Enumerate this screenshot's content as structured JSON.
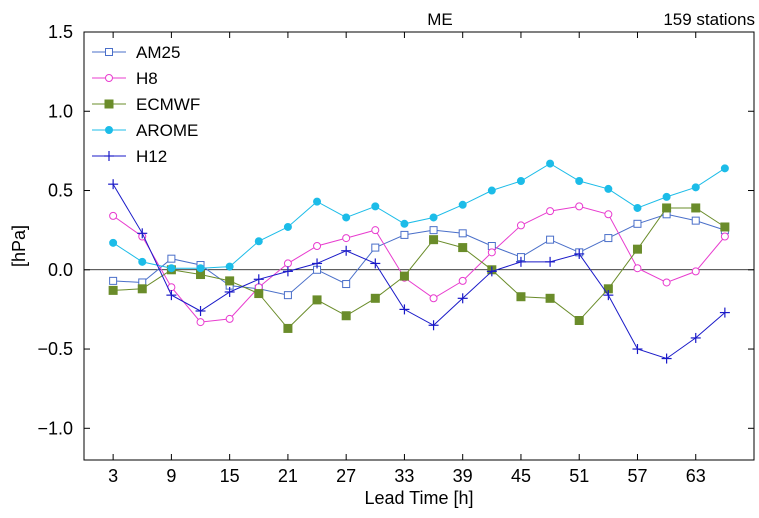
{
  "chart_data": {
    "type": "line",
    "title": "ME",
    "subtitle": "159 stations",
    "xlabel": "Lead Time [h]",
    "ylabel": "[hPa]",
    "xlim": [
      0,
      69
    ],
    "ylim": [
      -1.2,
      1.5
    ],
    "x_ticks": [
      3,
      9,
      15,
      21,
      27,
      33,
      39,
      45,
      51,
      57,
      63
    ],
    "y_ticks": [
      -1.0,
      -0.5,
      0.0,
      0.5,
      1.0,
      1.5
    ],
    "y_tick_labels": [
      "−1.0",
      "−0.5",
      "0.0",
      "0.5",
      "1.0",
      "1.5"
    ],
    "grid": false,
    "zero_line": true,
    "legend_position": "top-left",
    "x": [
      3,
      6,
      9,
      12,
      15,
      18,
      21,
      24,
      27,
      30,
      33,
      36,
      39,
      42,
      45,
      48,
      51,
      54,
      57,
      60,
      63,
      66
    ],
    "series": [
      {
        "name": "AM25",
        "color": "#4a6fc9",
        "marker": "open-square",
        "values": [
          -0.07,
          -0.08,
          0.07,
          0.03,
          -0.1,
          -0.12,
          -0.16,
          0.0,
          -0.09,
          0.14,
          0.22,
          0.25,
          0.23,
          0.15,
          0.08,
          0.19,
          0.11,
          0.2,
          0.29,
          0.35,
          0.31,
          0.25
        ]
      },
      {
        "name": "H8",
        "color": "#e83ccf",
        "marker": "open-circle",
        "values": [
          0.34,
          0.21,
          -0.11,
          -0.33,
          -0.31,
          -0.11,
          0.04,
          0.15,
          0.2,
          0.25,
          -0.05,
          -0.18,
          -0.07,
          0.11,
          0.28,
          0.37,
          0.4,
          0.35,
          0.01,
          -0.08,
          -0.01,
          0.21
        ]
      },
      {
        "name": "ECMWF",
        "color": "#6a8c2a",
        "marker": "filled-square",
        "values": [
          -0.13,
          -0.12,
          0.0,
          -0.03,
          -0.07,
          -0.15,
          -0.37,
          -0.19,
          -0.29,
          -0.18,
          -0.04,
          0.19,
          0.14,
          0.0,
          -0.17,
          -0.18,
          -0.32,
          -0.12,
          0.13,
          0.39,
          0.39,
          0.27
        ]
      },
      {
        "name": "AROME",
        "color": "#1cbce8",
        "marker": "filled-circle",
        "values": [
          0.17,
          0.05,
          0.01,
          0.01,
          0.02,
          0.18,
          0.27,
          0.43,
          0.33,
          0.4,
          0.29,
          0.33,
          0.41,
          0.5,
          0.56,
          0.67,
          0.56,
          0.51,
          0.39,
          0.46,
          0.52,
          0.64
        ]
      },
      {
        "name": "H12",
        "color": "#1a1ac8",
        "marker": "plus",
        "values": [
          0.54,
          0.23,
          -0.16,
          -0.26,
          -0.14,
          -0.06,
          -0.01,
          0.04,
          0.12,
          0.04,
          -0.25,
          -0.35,
          -0.18,
          -0.01,
          0.05,
          0.05,
          0.1,
          -0.16,
          -0.5,
          -0.56,
          -0.43,
          -0.27
        ]
      }
    ]
  }
}
